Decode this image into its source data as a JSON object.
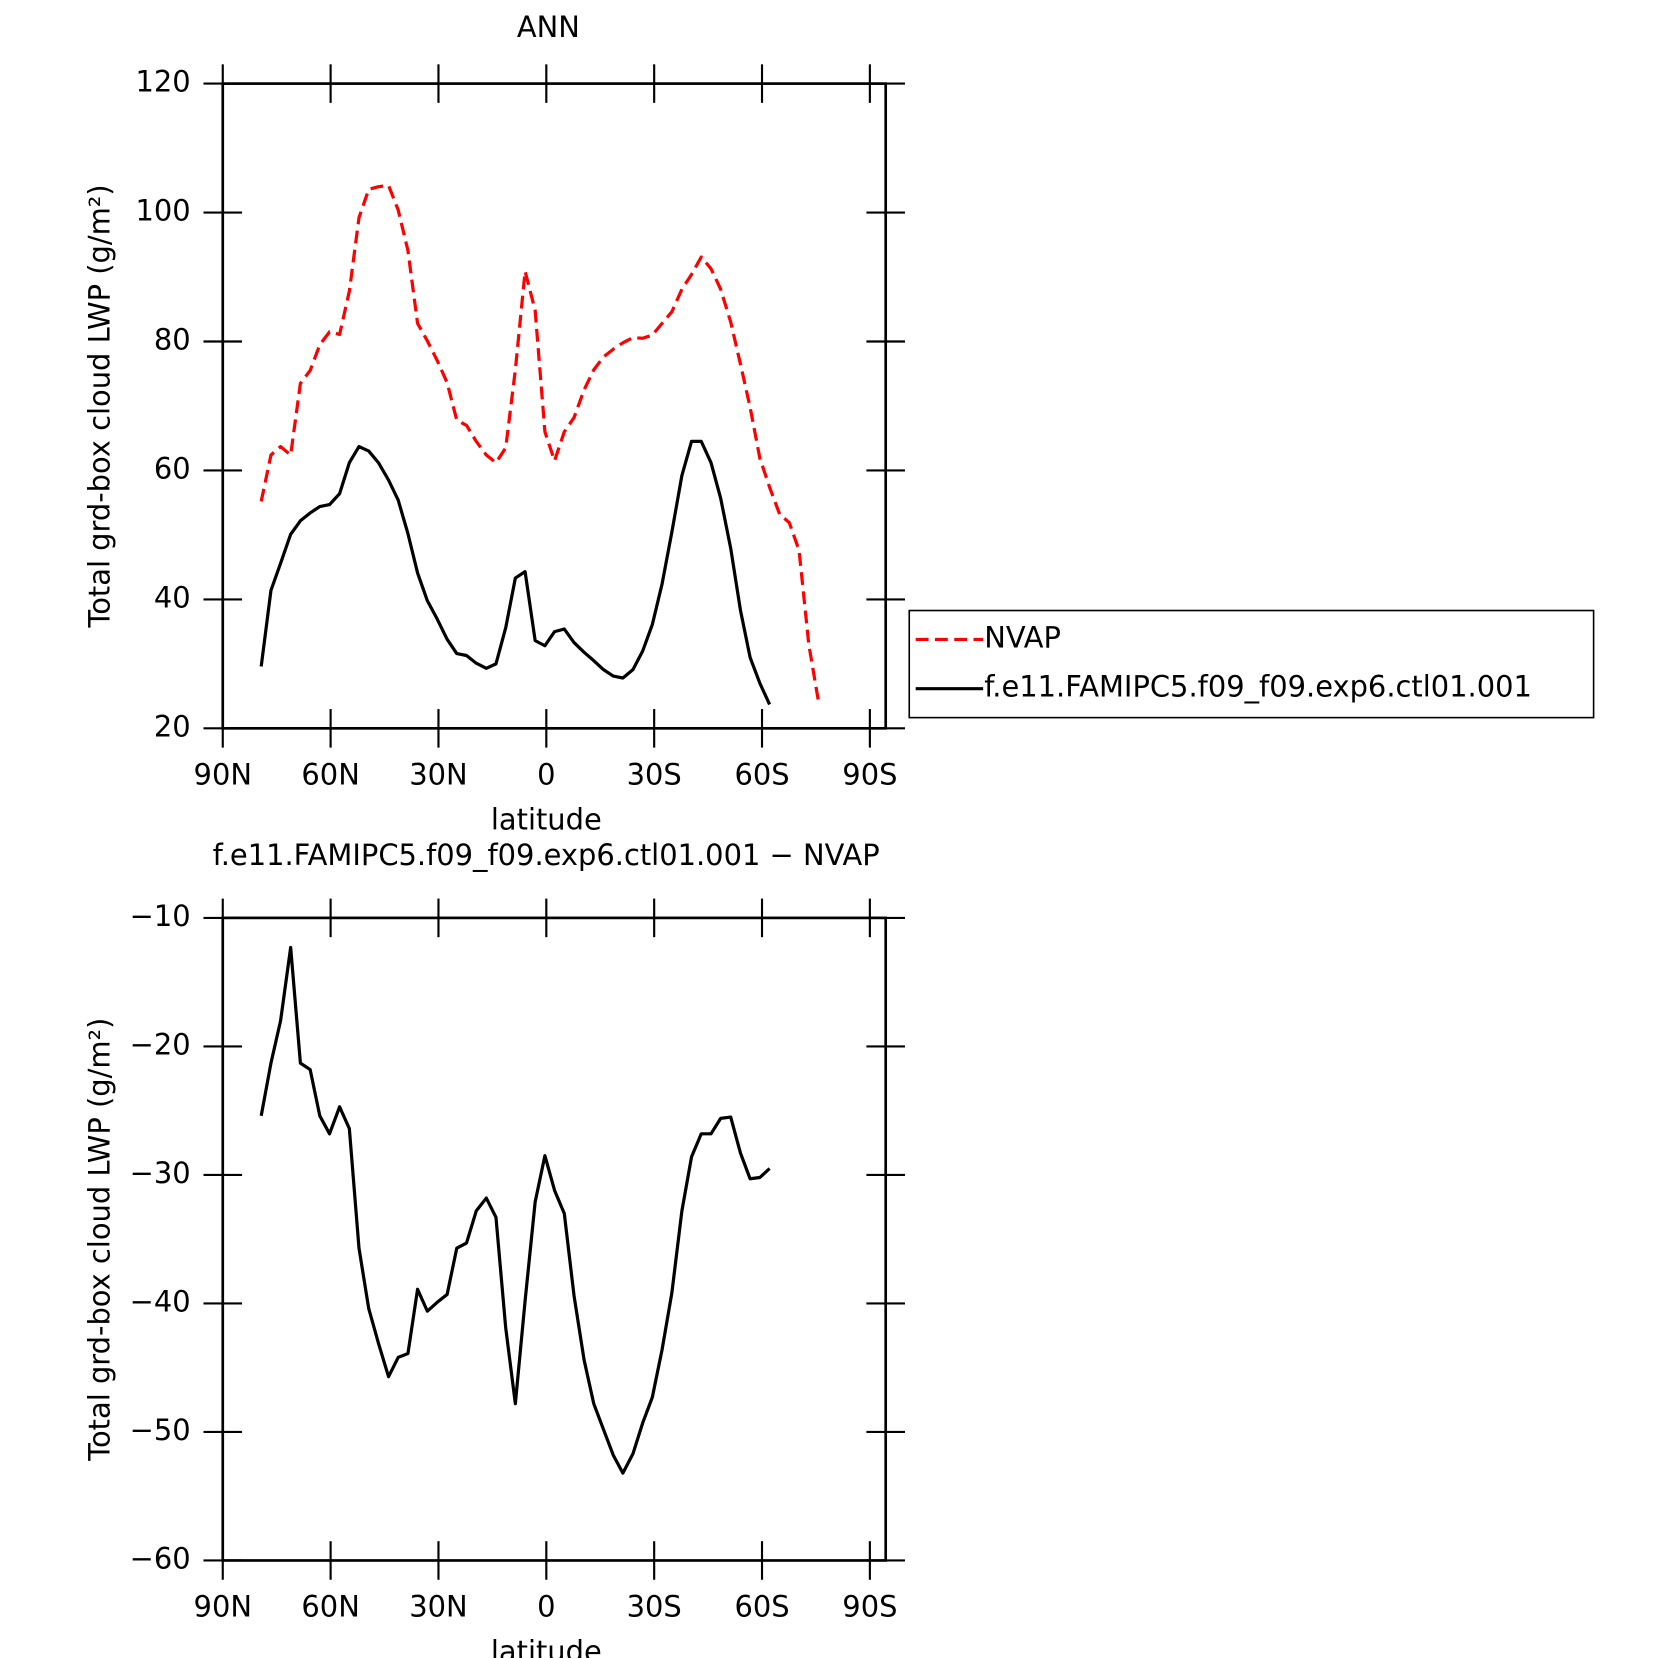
{
  "chart_data": [
    {
      "type": "line",
      "title": "ANN",
      "xlabel": "latitude",
      "ylabel": "Total grd-box cloud LWP (g/m²)",
      "x": [
        79.3,
        76.6,
        73.9,
        71.1,
        68.4,
        65.7,
        63.0,
        60.3,
        57.5,
        54.8,
        52.1,
        49.4,
        46.7,
        43.9,
        41.2,
        38.5,
        35.8,
        33.1,
        30.3,
        27.6,
        24.9,
        22.2,
        19.5,
        16.7,
        14.0,
        11.3,
        8.6,
        5.9,
        3.1,
        0.4,
        -2.3,
        -5.0,
        -7.7,
        -10.5,
        -13.2,
        -15.9,
        -18.6,
        -21.3,
        -24.1,
        -26.8,
        -29.5,
        -32.2,
        -34.9,
        -37.7,
        -40.4,
        -43.1,
        -45.8,
        -48.5,
        -51.3,
        -54.0,
        -56.7,
        -59.4,
        -62.1,
        -64.9,
        -67.6,
        -70.3,
        -73.0,
        -75.7
      ],
      "series": [
        {
          "name": "NVAP",
          "color": "#ff0000",
          "dash": "dashed",
          "values": [
            55.2,
            62.4,
            63.7,
            62.4,
            73.5,
            75.5,
            79.5,
            81.5,
            81.1,
            87.8,
            99.2,
            103.6,
            104,
            104.2,
            100.4,
            94.1,
            82.8,
            80.1,
            77,
            73.6,
            67.8,
            67,
            64.5,
            62.4,
            61.2,
            63.5,
            75.6,
            90.9,
            84.8,
            66,
            61.5,
            66,
            68.2,
            72.5,
            75.6,
            77.6,
            78.8,
            79.8,
            80.6,
            80.5,
            81,
            82.8,
            84.6,
            88.1,
            90.4,
            93.1,
            91.3,
            88.1,
            83,
            76.5,
            69.8,
            61.9,
            57.4,
            53.2,
            51.9,
            47.6,
            33,
            24.2
          ]
        },
        {
          "name": "f.e11.FAMIPC5.f09_f09.exp6.ctl01.001",
          "color": "#000000",
          "dash": "solid",
          "values": [
            29.6,
            41.4,
            45.6,
            50.1,
            52.2,
            53.4,
            54.4,
            54.7,
            56.4,
            61.2,
            63.7,
            63,
            61.2,
            58.5,
            55.4,
            50.2,
            44.1,
            39.8,
            36.9,
            33.8,
            31.6,
            31.3,
            30.1,
            29.3,
            30,
            35.6,
            43.3,
            44.3,
            33.6,
            32.8,
            35,
            35.4,
            33.3,
            31.8,
            30.5,
            29.1,
            28.1,
            27.8,
            29.1,
            32,
            36.1,
            42.4,
            50.4,
            59.2,
            64.5,
            64.5,
            61.2,
            55.7,
            47.9,
            38.3,
            31,
            27,
            23.7,
            null,
            null,
            null,
            null,
            null
          ]
        }
      ],
      "xlim": [
        90,
        -94.4
      ],
      "ylim": [
        20,
        120
      ],
      "xticks": [
        {
          "value": 90,
          "label": "90N"
        },
        {
          "value": 60,
          "label": "60N"
        },
        {
          "value": 30,
          "label": "30N"
        },
        0,
        {
          "value": -30,
          "label": "30S"
        },
        {
          "value": -60,
          "label": "60S"
        },
        {
          "value": -90,
          "label": "90S"
        }
      ],
      "yticks": [
        20,
        40,
        60,
        80,
        100,
        120
      ],
      "legend": "outside-right"
    },
    {
      "type": "line",
      "title": "f.e11.FAMIPC5.f09_f09.exp6.ctl01.001 − NVAP",
      "xlabel": "latitude",
      "ylabel": "Total grd-box cloud LWP (g/m²)",
      "x": [
        79.3,
        76.6,
        73.9,
        71.1,
        68.4,
        65.7,
        63.0,
        60.3,
        57.5,
        54.8,
        52.1,
        49.4,
        46.7,
        43.9,
        41.2,
        38.5,
        35.8,
        33.1,
        30.3,
        27.6,
        24.9,
        22.2,
        19.5,
        16.7,
        14.0,
        11.3,
        8.6,
        5.9,
        3.1,
        0.4,
        -2.3,
        -5.0,
        -7.7,
        -10.5,
        -13.2,
        -15.9,
        -18.6,
        -21.3,
        -24.1,
        -26.8,
        -29.5,
        -32.2,
        -34.9,
        -37.7,
        -40.4,
        -43.1,
        -45.8,
        -48.5,
        -51.3,
        -54.0,
        -56.7,
        -59.4,
        -62.1
      ],
      "series": [
        {
          "color": "#000000",
          "dash": "solid",
          "values": [
            -25.4,
            -21.3,
            -18,
            -12.3,
            -21.3,
            -21.8,
            -25.4,
            -26.8,
            -24.7,
            -26.4,
            -35.7,
            -40.4,
            -43.1,
            -45.7,
            -44.2,
            -43.9,
            -38.9,
            -40.6,
            -39.9,
            -39.3,
            -35.7,
            -35.3,
            -32.8,
            -31.8,
            -33.3,
            -41.9,
            -47.8,
            -39.8,
            -32.1,
            -28.5,
            -31.2,
            -33,
            -39.4,
            -44.4,
            -47.8,
            -49.8,
            -51.8,
            -53.2,
            -51.7,
            -49.3,
            -47.3,
            -43.6,
            -39.2,
            -32.8,
            -28.6,
            -26.8,
            -26.8,
            -25.6,
            -25.5,
            -28.3,
            -30.3,
            -30.2,
            -29.5
          ]
        }
      ],
      "xlim": [
        90,
        -94.4
      ],
      "ylim": [
        -60,
        -10
      ],
      "xticks": [
        {
          "value": 90,
          "label": "90N"
        },
        {
          "value": 60,
          "label": "60N"
        },
        {
          "value": 30,
          "label": "30N"
        },
        0,
        {
          "value": -30,
          "label": "30S"
        },
        {
          "value": -60,
          "label": "60S"
        },
        {
          "value": -90,
          "label": "90S"
        }
      ],
      "yticks": [
        {
          "value": -60,
          "label": "−60"
        },
        {
          "value": -50,
          "label": "−50"
        },
        {
          "value": -40,
          "label": "−40"
        },
        {
          "value": -30,
          "label": "−30"
        },
        {
          "value": -20,
          "label": "−20"
        },
        {
          "value": -10,
          "label": "−10"
        }
      ]
    }
  ]
}
